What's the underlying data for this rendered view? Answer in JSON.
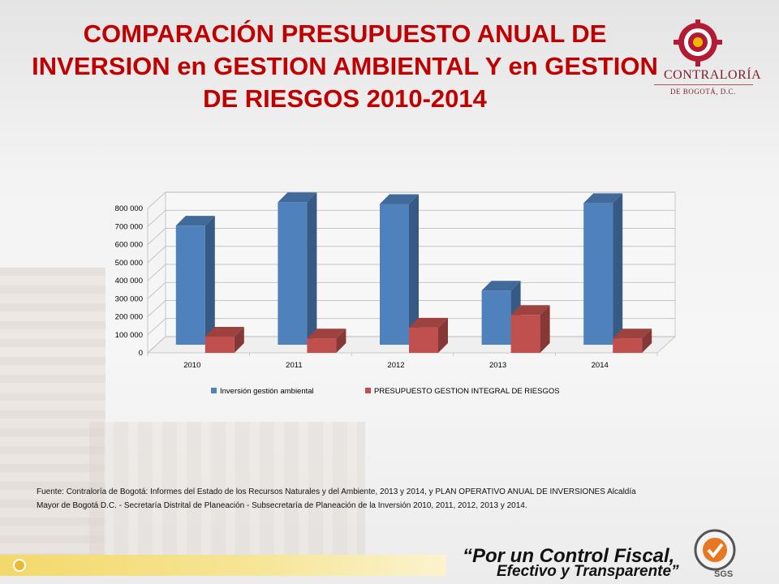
{
  "header": {
    "title_line1": "COMPARACIÓN PRESUPUESTO ANUAL DE",
    "title_line2": "INVERSION en GESTION AMBIENTAL Y en GESTION",
    "title_line3": "DE RIESGOS 2010-2014"
  },
  "logo": {
    "name": "CONTRALORÍA",
    "sub": "DE BOGOTÁ, D.C."
  },
  "chart_data": {
    "type": "bar",
    "categories": [
      "2010",
      "2011",
      "2012",
      "2013",
      "2014"
    ],
    "series": [
      {
        "name": "Inversión gestión ambiental",
        "values": [
          660000,
          790000,
          780000,
          300000,
          785000
        ],
        "color": "#4f81bd"
      },
      {
        "name": "PRESUPUESTO GESTION INTEGRAL DE RIESGOS",
        "values": [
          90000,
          80000,
          140000,
          210000,
          80000
        ],
        "color": "#c0504d"
      }
    ],
    "y_ticks": [
      "0",
      "100 000",
      "200 000",
      "300 000",
      "400 000",
      "500 000",
      "600 000",
      "700 000",
      "800 000"
    ],
    "ylim": [
      0,
      800000
    ],
    "grid": true,
    "legend_position": "bottom",
    "style": "3d"
  },
  "source_note": "Fuente: Contraloría de Bogotá: Informes del Estado de los Recursos Naturales y del Ambiente, 2013 y 2014, y PLAN OPERATIVO ANUAL DE INVERSIONES  Alcaldía Mayor de Bogotá D.C. - Secretaría Distrital de Planeación  - Subsecretaría de Planeación de la Inversión  2010, 2011, 2012, 2013 y 2014.",
  "footer": {
    "slogan_line1": "“Por un Control Fiscal,",
    "slogan_line2": "Efectivo y Transparente”",
    "cert_label": "SGS"
  },
  "colors": {
    "title": "#c00000",
    "series_blue": "#4f81bd",
    "series_red": "#c0504d"
  }
}
